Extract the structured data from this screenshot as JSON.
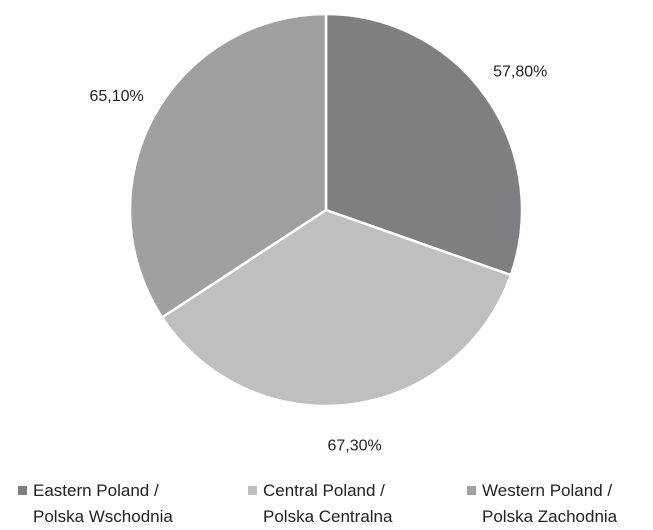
{
  "chart_data": {
    "type": "pie",
    "categories": [
      "Eastern Poland /\nPolska Wschodnia",
      "Central Poland /\nPolska Centralna",
      "Western Poland /\nPolska Zachodnia"
    ],
    "values": [
      57.8,
      67.3,
      65.1
    ],
    "value_labels": [
      "57,80%",
      "67,30%",
      "65,10%"
    ],
    "colors": [
      "#7f7f81",
      "#bfbfbf",
      "#a0a0a2"
    ],
    "legend": "bottom"
  }
}
